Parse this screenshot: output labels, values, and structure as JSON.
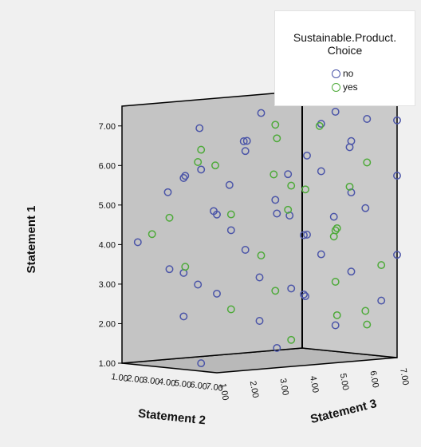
{
  "chart_data": {
    "type": "scatter",
    "projection": "3d",
    "title": "",
    "axes": {
      "y": {
        "label": "Statement 1",
        "range": [
          1,
          7.5
        ],
        "ticks": [
          "1.00",
          "2.00",
          "3.00",
          "4.00",
          "5.00",
          "6.00",
          "7.00"
        ]
      },
      "x": {
        "label": "Statement 2",
        "range": [
          1,
          7
        ],
        "ticks": [
          "1.00",
          "2.00",
          "3.00",
          "4.00",
          "5.00",
          "6.00",
          "7.00"
        ]
      },
      "z": {
        "label": "Statement 3",
        "range": [
          1,
          7
        ],
        "ticks": [
          "1.00",
          "2.00",
          "3.00",
          "4.00",
          "5.00",
          "6.00",
          "7.00"
        ]
      }
    },
    "legend": {
      "title_lines": [
        "Sustainable.Product.",
        "Choice"
      ],
      "placement": "top-right",
      "entries": [
        {
          "label": "no",
          "color": "#4b55a8"
        },
        {
          "label": "yes",
          "color": "#4eaa3a"
        }
      ]
    },
    "colors": {
      "wall": "#c4c4c4",
      "background": "#f0f0f0"
    },
    "series": [
      {
        "name": "no",
        "points": [
          [
            6,
            7.4,
            3
          ],
          [
            4,
            7,
            2
          ],
          [
            6,
            7,
            5
          ],
          [
            7,
            7.1,
            6
          ],
          [
            7,
            7,
            7
          ],
          [
            3,
            6.5,
            4
          ],
          [
            5,
            6.4,
            3
          ],
          [
            6,
            6.5,
            6
          ],
          [
            7,
            6.3,
            4
          ],
          [
            6,
            6.1,
            1
          ],
          [
            3,
            5.7,
            2
          ],
          [
            4,
            5.5,
            3
          ],
          [
            6,
            5.8,
            5
          ],
          [
            7,
            5.6,
            7
          ],
          [
            2,
            5.3,
            2
          ],
          [
            5,
            5.1,
            4
          ],
          [
            6,
            5.2,
            6
          ],
          [
            7,
            5,
            1
          ],
          [
            3,
            4.8,
            3
          ],
          [
            4,
            4.6,
            5
          ],
          [
            5,
            4.7,
            7
          ],
          [
            6,
            4.5,
            2
          ],
          [
            7,
            4.3,
            4
          ],
          [
            2,
            4.1,
            1
          ],
          [
            3,
            4,
            6
          ],
          [
            5,
            3.9,
            3
          ],
          [
            6,
            3.7,
            5
          ],
          [
            7,
            3.6,
            7
          ],
          [
            3,
            3.3,
            2
          ],
          [
            4,
            3.1,
            4
          ],
          [
            6,
            3.2,
            6
          ],
          [
            7,
            3,
            1
          ],
          [
            2,
            2.9,
            3
          ],
          [
            5,
            2.6,
            5
          ],
          [
            6,
            2.4,
            7
          ],
          [
            3,
            2.2,
            2
          ],
          [
            4,
            2,
            4
          ],
          [
            5,
            1.8,
            6
          ],
          [
            7,
            1.5,
            3
          ],
          [
            6,
            1.2,
            1
          ],
          [
            4,
            6.2,
            7
          ],
          [
            5,
            5.9,
            1
          ],
          [
            2,
            5.5,
            6
          ],
          [
            3,
            4.4,
            7
          ],
          [
            7,
            4.9,
            3
          ],
          [
            4,
            3.5,
            1
          ],
          [
            6,
            2.9,
            4
          ],
          [
            3,
            2.5,
            6
          ],
          [
            7,
            6.8,
            2
          ],
          [
            5,
            7.2,
            6
          ]
        ]
      },
      {
        "name": "yes",
        "points": [
          [
            5,
            7,
            4
          ],
          [
            7,
            6.8,
            3
          ],
          [
            2,
            6,
            3
          ],
          [
            5,
            6.1,
            2
          ],
          [
            7,
            6,
            6
          ],
          [
            6,
            5.5,
            4
          ],
          [
            5,
            5.3,
            5
          ],
          [
            6,
            4.9,
            2
          ],
          [
            7,
            4.4,
            5
          ],
          [
            1,
            4.2,
            2
          ],
          [
            5,
            4.2,
            6
          ],
          [
            6,
            3.8,
            3
          ],
          [
            5,
            3.6,
            1
          ],
          [
            6,
            3.3,
            7
          ],
          [
            5,
            2.8,
            4
          ],
          [
            6,
            2.5,
            2
          ],
          [
            5,
            2.1,
            7
          ],
          [
            7,
            2.2,
            5
          ],
          [
            6,
            1.6,
            4
          ],
          [
            7,
            1.9,
            6
          ],
          [
            4,
            5.2,
            7
          ],
          [
            3,
            5.6,
            5
          ],
          [
            4,
            6.8,
            6
          ],
          [
            6,
            6.6,
            1
          ],
          [
            5,
            2.9,
            6
          ],
          [
            4,
            4.8,
            1
          ],
          [
            3,
            3.9,
            7
          ],
          [
            2,
            4.6,
            6
          ]
        ]
      }
    ]
  }
}
